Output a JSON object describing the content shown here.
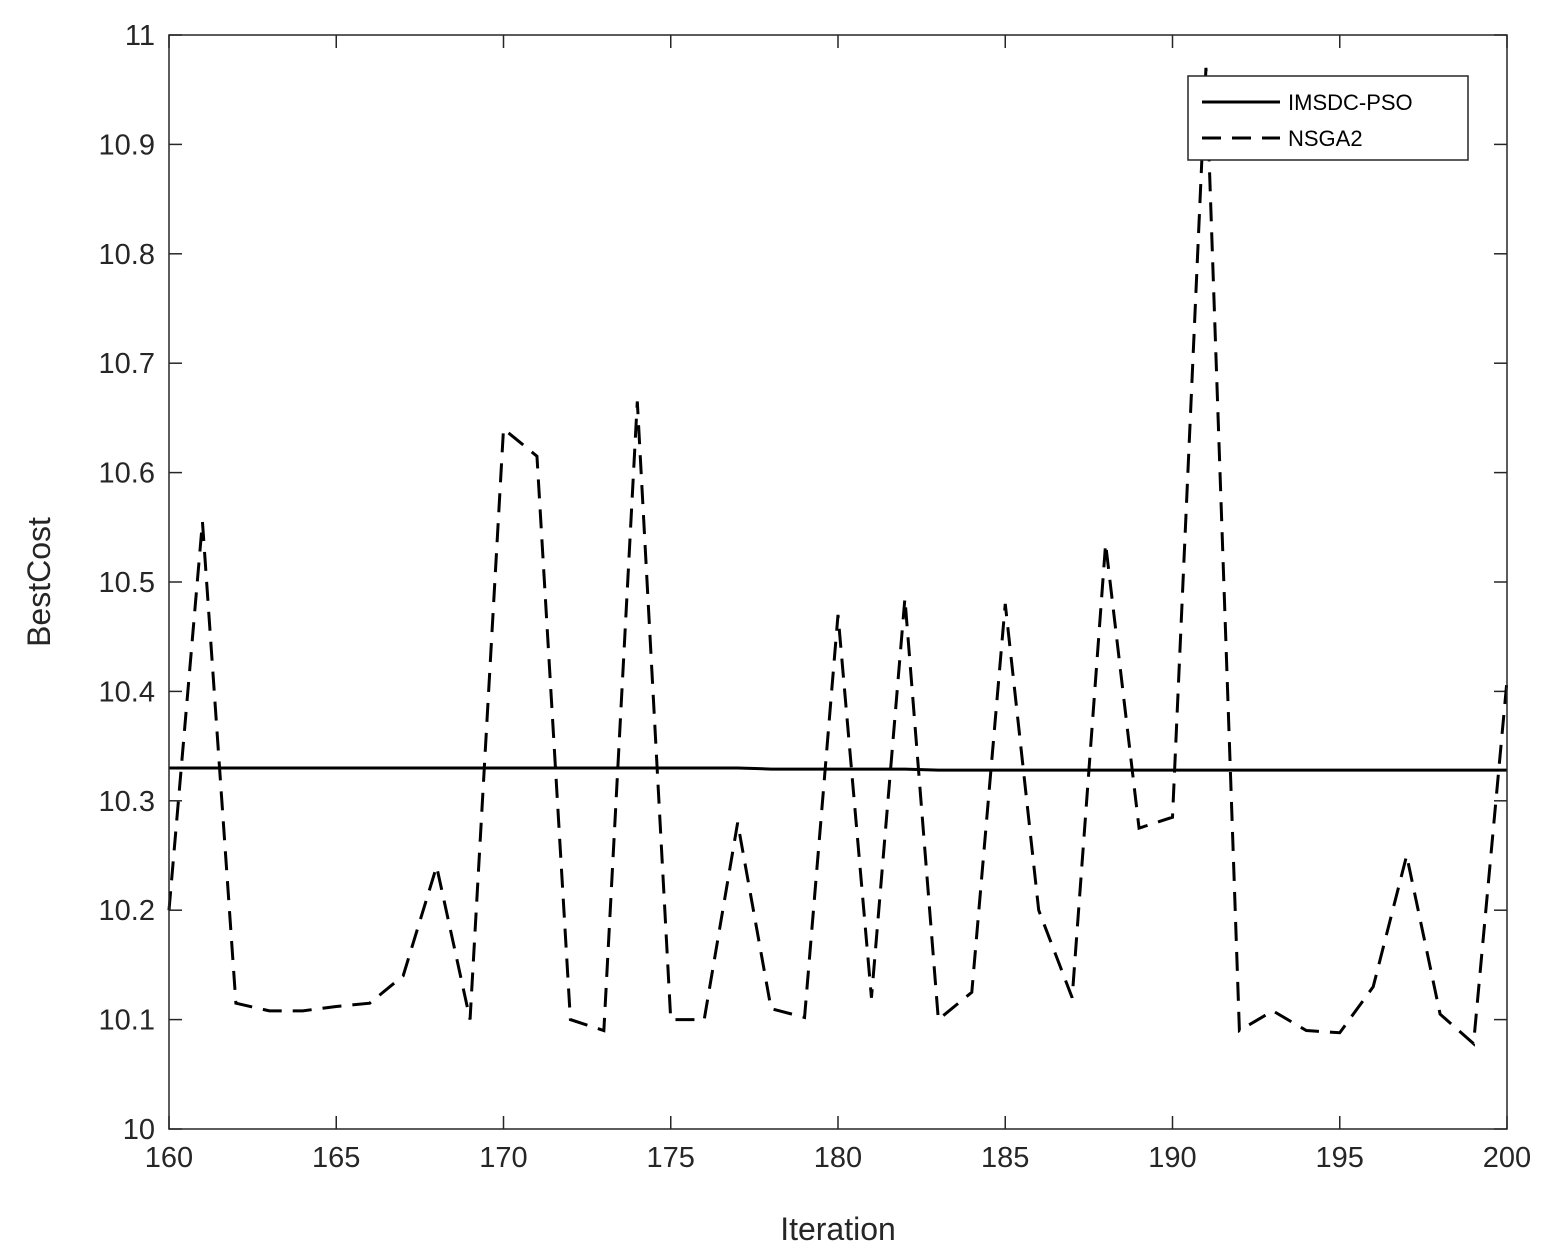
{
  "chart_data": {
    "type": "line",
    "title": "",
    "xlabel": "Iteration",
    "ylabel": "BestCost",
    "xlim": [
      160,
      200
    ],
    "ylim": [
      10,
      11
    ],
    "xticks": [
      160,
      165,
      170,
      175,
      180,
      185,
      190,
      195,
      200
    ],
    "yticks": [
      10,
      10.1,
      10.2,
      10.3,
      10.4,
      10.5,
      10.6,
      10.7,
      10.8,
      10.9,
      11
    ],
    "ytick_labels": [
      "10",
      "10.1",
      "10.2",
      "10.3",
      "10.4",
      "10.5",
      "10.6",
      "10.7",
      "10.8",
      "10.9",
      "11"
    ],
    "grid": false,
    "legend_position": "top-right",
    "x": [
      160,
      161,
      162,
      163,
      164,
      165,
      166,
      167,
      168,
      169,
      170,
      171,
      172,
      173,
      174,
      175,
      176,
      177,
      178,
      179,
      180,
      181,
      182,
      183,
      184,
      185,
      186,
      187,
      188,
      189,
      190,
      191,
      192,
      193,
      194,
      195,
      196,
      197,
      198,
      199,
      200
    ],
    "series": [
      {
        "name": "IMSDC-PSO",
        "style": "solid",
        "color": "#000000",
        "values": [
          10.33,
          10.33,
          10.33,
          10.33,
          10.33,
          10.33,
          10.33,
          10.33,
          10.33,
          10.33,
          10.33,
          10.33,
          10.33,
          10.33,
          10.33,
          10.33,
          10.33,
          10.33,
          10.329,
          10.329,
          10.329,
          10.329,
          10.329,
          10.328,
          10.328,
          10.328,
          10.328,
          10.328,
          10.328,
          10.328,
          10.328,
          10.328,
          10.328,
          10.328,
          10.328,
          10.328,
          10.328,
          10.328,
          10.328,
          10.328,
          10.328
        ]
      },
      {
        "name": "NSGA2",
        "style": "dashed",
        "color": "#000000",
        "values": [
          10.2,
          10.555,
          10.115,
          10.108,
          10.108,
          10.112,
          10.115,
          10.14,
          10.24,
          10.1,
          10.64,
          10.615,
          10.1,
          10.09,
          10.665,
          10.1,
          10.1,
          10.28,
          10.11,
          10.102,
          10.47,
          10.12,
          10.485,
          10.1,
          10.125,
          10.48,
          10.2,
          10.12,
          10.535,
          10.275,
          10.285,
          10.97,
          10.09,
          10.108,
          10.09,
          10.088,
          10.13,
          10.25,
          10.105,
          10.078,
          10.41
        ]
      }
    ]
  }
}
